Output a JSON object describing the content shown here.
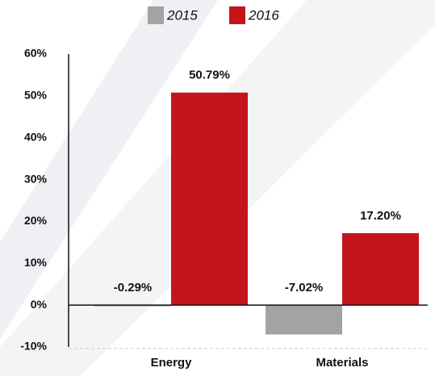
{
  "chart_data": {
    "type": "bar",
    "categories": [
      "Energy",
      "Materials"
    ],
    "series": [
      {
        "name": "2015",
        "color": "#a3a3a3",
        "values": [
          -0.29,
          -7.02
        ],
        "value_labels": [
          "-0.29%",
          "-7.02%"
        ]
      },
      {
        "name": "2016",
        "color": "#c4141c",
        "values": [
          50.79,
          17.2
        ],
        "value_labels": [
          "50.79%",
          "17.20%"
        ]
      }
    ],
    "ylim": [
      -10,
      60
    ],
    "yticks": [
      {
        "value": -10,
        "label": "-10%"
      },
      {
        "value": 0,
        "label": "0%"
      },
      {
        "value": 10,
        "label": "10%"
      },
      {
        "value": 20,
        "label": "20%"
      },
      {
        "value": 30,
        "label": "30%"
      },
      {
        "value": 40,
        "label": "40%"
      },
      {
        "value": 50,
        "label": "50%"
      },
      {
        "value": 60,
        "label": "60%"
      }
    ],
    "grid": false,
    "legend": "top"
  }
}
